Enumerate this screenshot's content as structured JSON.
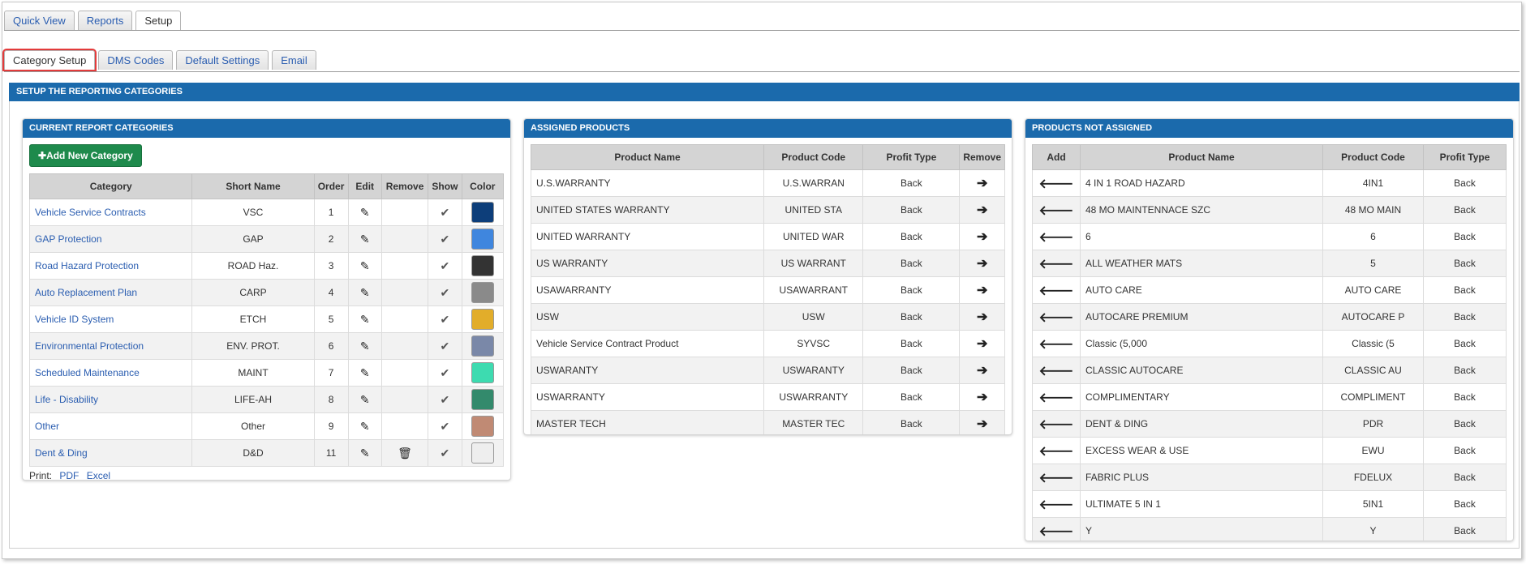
{
  "top_tabs": [
    "Quick View",
    "Reports",
    "Setup"
  ],
  "sub_tabs": [
    "Category Setup",
    "DMS Codes",
    "Default Settings",
    "Email"
  ],
  "section_title": "SETUP THE REPORTING CATEGORIES",
  "categories_panel": {
    "title": "CURRENT REPORT CATEGORIES",
    "add_button": "Add New Category",
    "columns": [
      "Category",
      "Short Name",
      "Order",
      "Edit",
      "Remove",
      "Show",
      "Color"
    ],
    "rows": [
      {
        "category": "Vehicle Service Contracts",
        "short": "VSC",
        "order": "1",
        "color": "#0d3e7a",
        "removable": false
      },
      {
        "category": "GAP Protection",
        "short": "GAP",
        "order": "2",
        "color": "#3f86de",
        "removable": false
      },
      {
        "category": "Road Hazard Protection",
        "short": "ROAD Haz.",
        "order": "3",
        "color": "#333333",
        "removable": false
      },
      {
        "category": "Auto Replacement Plan",
        "short": "CARP",
        "order": "4",
        "color": "#8a8a8a",
        "removable": false
      },
      {
        "category": "Vehicle ID System",
        "short": "ETCH",
        "order": "5",
        "color": "#e2ad2a",
        "removable": false
      },
      {
        "category": "Environmental Protection",
        "short": "ENV. PROT.",
        "order": "6",
        "color": "#7a88a8",
        "removable": false
      },
      {
        "category": "Scheduled Maintenance",
        "short": "MAINT",
        "order": "7",
        "color": "#3ddbb0",
        "removable": false
      },
      {
        "category": "Life - Disability",
        "short": "LIFE-AH",
        "order": "8",
        "color": "#338a6c",
        "removable": false
      },
      {
        "category": "Other",
        "short": "Other",
        "order": "9",
        "color": "#c08a74",
        "removable": false
      },
      {
        "category": "Dent & Ding",
        "short": "D&D",
        "order": "11",
        "color": "#eeeeee",
        "removable": true
      }
    ],
    "print_label": "Print:",
    "print_pdf": "PDF",
    "print_excel": "Excel"
  },
  "assigned_panel": {
    "title": "ASSIGNED PRODUCTS",
    "columns": [
      "Product Name",
      "Product Code",
      "Profit Type",
      "Remove"
    ],
    "rows": [
      {
        "name": "U.S.WARRANTY",
        "code": "U.S.WARRAN",
        "type": "Back"
      },
      {
        "name": "UNITED STATES WARRANTY",
        "code": "UNITED STA",
        "type": "Back"
      },
      {
        "name": "UNITED WARRANTY",
        "code": "UNITED WAR",
        "type": "Back"
      },
      {
        "name": "US WARRANTY",
        "code": "US WARRANT",
        "type": "Back"
      },
      {
        "name": "USAWARRANTY",
        "code": "USAWARRANT",
        "type": "Back"
      },
      {
        "name": "USW",
        "code": "USW",
        "type": "Back"
      },
      {
        "name": "Vehicle Service Contract Product",
        "code": "SYVSC",
        "type": "Back"
      },
      {
        "name": "USWARANTY",
        "code": "USWARANTY",
        "type": "Back"
      },
      {
        "name": "USWARRANTY",
        "code": "USWARRANTY",
        "type": "Back"
      },
      {
        "name": "MASTER TECH",
        "code": "MASTER TEC",
        "type": "Back"
      }
    ]
  },
  "not_assigned_panel": {
    "title": "PRODUCTS NOT ASSIGNED",
    "columns": [
      "Add",
      "Product Name",
      "Product Code",
      "Profit Type"
    ],
    "rows": [
      {
        "name": "4 IN 1 ROAD HAZARD",
        "code": "4IN1",
        "type": "Back"
      },
      {
        "name": "48 MO MAINTENNACE SZC",
        "code": "48 MO MAIN",
        "type": "Back"
      },
      {
        "name": "6",
        "code": "6",
        "type": "Back"
      },
      {
        "name": "ALL WEATHER MATS",
        "code": "5",
        "type": "Back"
      },
      {
        "name": "AUTO CARE",
        "code": "AUTO CARE",
        "type": "Back"
      },
      {
        "name": "AUTOCARE PREMIUM",
        "code": "AUTOCARE P",
        "type": "Back"
      },
      {
        "name": "Classic (5,000",
        "code": "Classic (5",
        "type": "Back"
      },
      {
        "name": "CLASSIC AUTOCARE",
        "code": "CLASSIC AU",
        "type": "Back"
      },
      {
        "name": "COMPLIMENTARY",
        "code": "COMPLIMENT",
        "type": "Back"
      },
      {
        "name": "DENT & DING",
        "code": "PDR",
        "type": "Back"
      },
      {
        "name": "EXCESS WEAR & USE",
        "code": "EWU",
        "type": "Back"
      },
      {
        "name": "FABRIC PLUS",
        "code": "FDELUX",
        "type": "Back"
      },
      {
        "name": "ULTIMATE 5 IN 1",
        "code": "5IN1",
        "type": "Back"
      },
      {
        "name": "Y",
        "code": "Y",
        "type": "Back"
      }
    ]
  }
}
